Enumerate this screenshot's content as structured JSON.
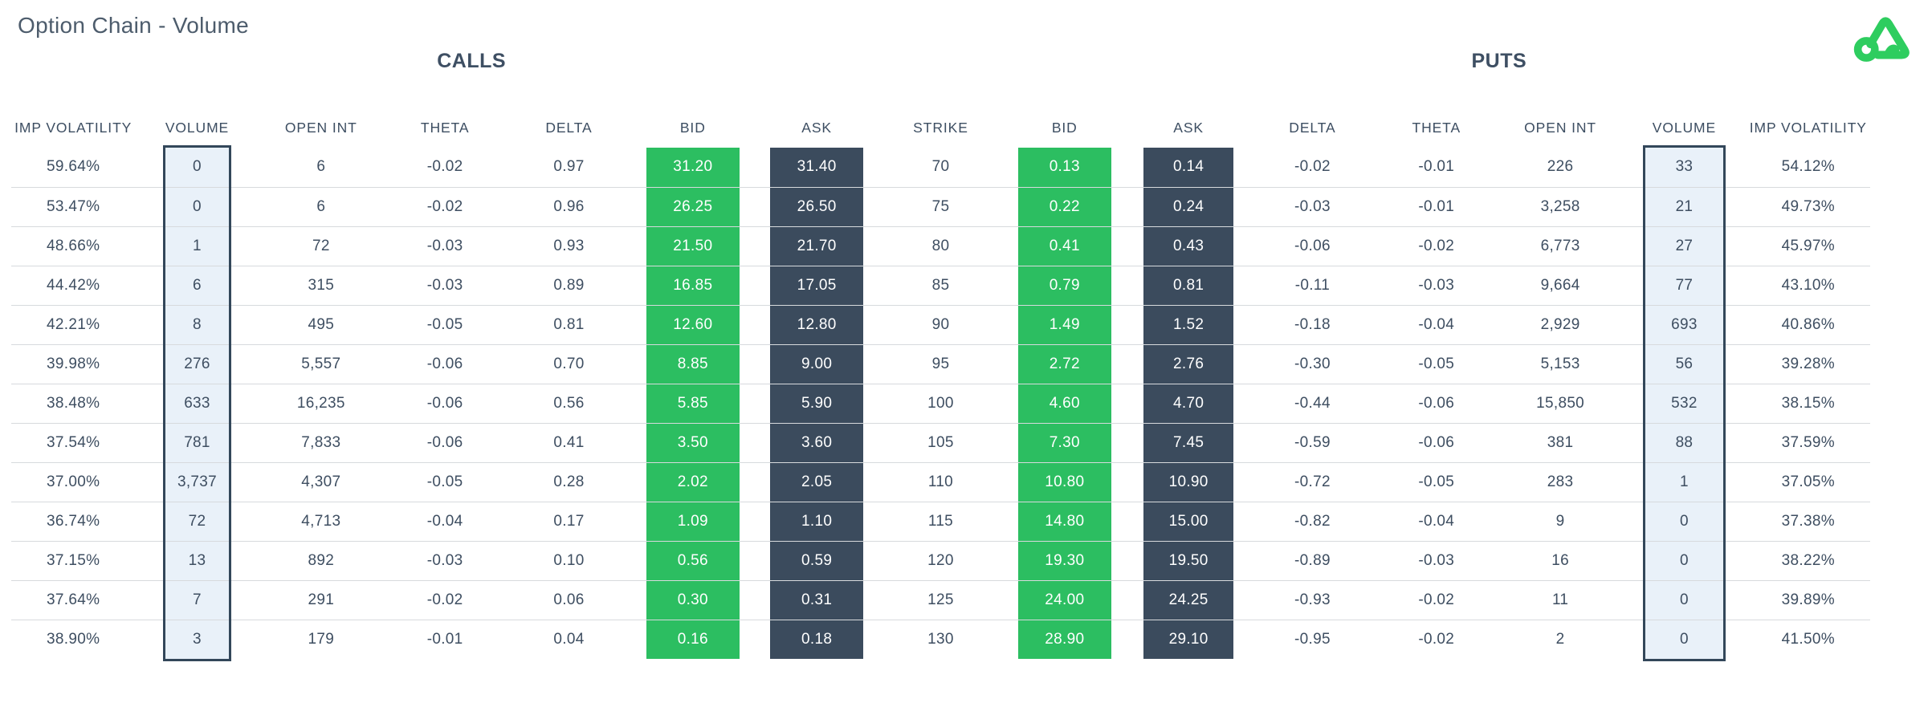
{
  "header": {
    "title": "Option Chain - Volume",
    "logo_icon": "brand-triangle-loop-logo"
  },
  "table": {
    "group_headers": {
      "calls": "CALLS",
      "puts": "PUTS"
    },
    "columns": [
      {
        "id": "call_iv",
        "label": "IMP VOLATILITY",
        "type": "plain"
      },
      {
        "id": "call_volume",
        "label": "VOLUME",
        "type": "volume"
      },
      {
        "id": "call_open_int",
        "label": "OPEN INT",
        "type": "plain"
      },
      {
        "id": "call_theta",
        "label": "THETA",
        "type": "plain"
      },
      {
        "id": "call_delta",
        "label": "DELTA",
        "type": "plain"
      },
      {
        "id": "call_bid",
        "label": "BID",
        "type": "bid"
      },
      {
        "id": "call_ask",
        "label": "ASK",
        "type": "ask"
      },
      {
        "id": "strike",
        "label": "STRIKE",
        "type": "plain"
      },
      {
        "id": "put_bid",
        "label": "BID",
        "type": "bid"
      },
      {
        "id": "put_ask",
        "label": "ASK",
        "type": "ask"
      },
      {
        "id": "put_delta",
        "label": "DELTA",
        "type": "plain"
      },
      {
        "id": "put_theta",
        "label": "THETA",
        "type": "plain"
      },
      {
        "id": "put_open_int",
        "label": "OPEN INT",
        "type": "plain"
      },
      {
        "id": "put_volume",
        "label": "VOLUME",
        "type": "volume"
      },
      {
        "id": "put_iv",
        "label": "IMP VOLATILITY",
        "type": "plain"
      }
    ],
    "rows": [
      [
        "59.64%",
        "0",
        "6",
        "-0.02",
        "0.97",
        "31.20",
        "31.40",
        "70",
        "0.13",
        "0.14",
        "-0.02",
        "-0.01",
        "226",
        "33",
        "54.12%"
      ],
      [
        "53.47%",
        "0",
        "6",
        "-0.02",
        "0.96",
        "26.25",
        "26.50",
        "75",
        "0.22",
        "0.24",
        "-0.03",
        "-0.01",
        "3,258",
        "21",
        "49.73%"
      ],
      [
        "48.66%",
        "1",
        "72",
        "-0.03",
        "0.93",
        "21.50",
        "21.70",
        "80",
        "0.41",
        "0.43",
        "-0.06",
        "-0.02",
        "6,773",
        "27",
        "45.97%"
      ],
      [
        "44.42%",
        "6",
        "315",
        "-0.03",
        "0.89",
        "16.85",
        "17.05",
        "85",
        "0.79",
        "0.81",
        "-0.11",
        "-0.03",
        "9,664",
        "77",
        "43.10%"
      ],
      [
        "42.21%",
        "8",
        "495",
        "-0.05",
        "0.81",
        "12.60",
        "12.80",
        "90",
        "1.49",
        "1.52",
        "-0.18",
        "-0.04",
        "2,929",
        "693",
        "40.86%"
      ],
      [
        "39.98%",
        "276",
        "5,557",
        "-0.06",
        "0.70",
        "8.85",
        "9.00",
        "95",
        "2.72",
        "2.76",
        "-0.30",
        "-0.05",
        "5,153",
        "56",
        "39.28%"
      ],
      [
        "38.48%",
        "633",
        "16,235",
        "-0.06",
        "0.56",
        "5.85",
        "5.90",
        "100",
        "4.60",
        "4.70",
        "-0.44",
        "-0.06",
        "15,850",
        "532",
        "38.15%"
      ],
      [
        "37.54%",
        "781",
        "7,833",
        "-0.06",
        "0.41",
        "3.50",
        "3.60",
        "105",
        "7.30",
        "7.45",
        "-0.59",
        "-0.06",
        "381",
        "88",
        "37.59%"
      ],
      [
        "37.00%",
        "3,737",
        "4,307",
        "-0.05",
        "0.28",
        "2.02",
        "2.05",
        "110",
        "10.80",
        "10.90",
        "-0.72",
        "-0.05",
        "283",
        "1",
        "37.05%"
      ],
      [
        "36.74%",
        "72",
        "4,713",
        "-0.04",
        "0.17",
        "1.09",
        "1.10",
        "115",
        "14.80",
        "15.00",
        "-0.82",
        "-0.04",
        "9",
        "0",
        "37.38%"
      ],
      [
        "37.15%",
        "13",
        "892",
        "-0.03",
        "0.10",
        "0.56",
        "0.59",
        "120",
        "19.30",
        "19.50",
        "-0.89",
        "-0.03",
        "16",
        "0",
        "38.22%"
      ],
      [
        "37.64%",
        "7",
        "291",
        "-0.02",
        "0.06",
        "0.30",
        "0.31",
        "125",
        "24.00",
        "24.25",
        "-0.93",
        "-0.02",
        "11",
        "0",
        "39.89%"
      ],
      [
        "38.90%",
        "3",
        "179",
        "-0.01",
        "0.04",
        "0.16",
        "0.18",
        "130",
        "28.90",
        "29.10",
        "-0.95",
        "-0.02",
        "2",
        "0",
        "41.50%"
      ]
    ]
  },
  "colors": {
    "green": "#2CBE61",
    "dark": "#3B4B5D",
    "vol_fill": "#E9F1F9",
    "vol_border": "#33475A",
    "text": "#3E4E61",
    "title": "#4D5C6C",
    "divider": "#D7DADD",
    "logo_green": "#2ECD5F"
  }
}
